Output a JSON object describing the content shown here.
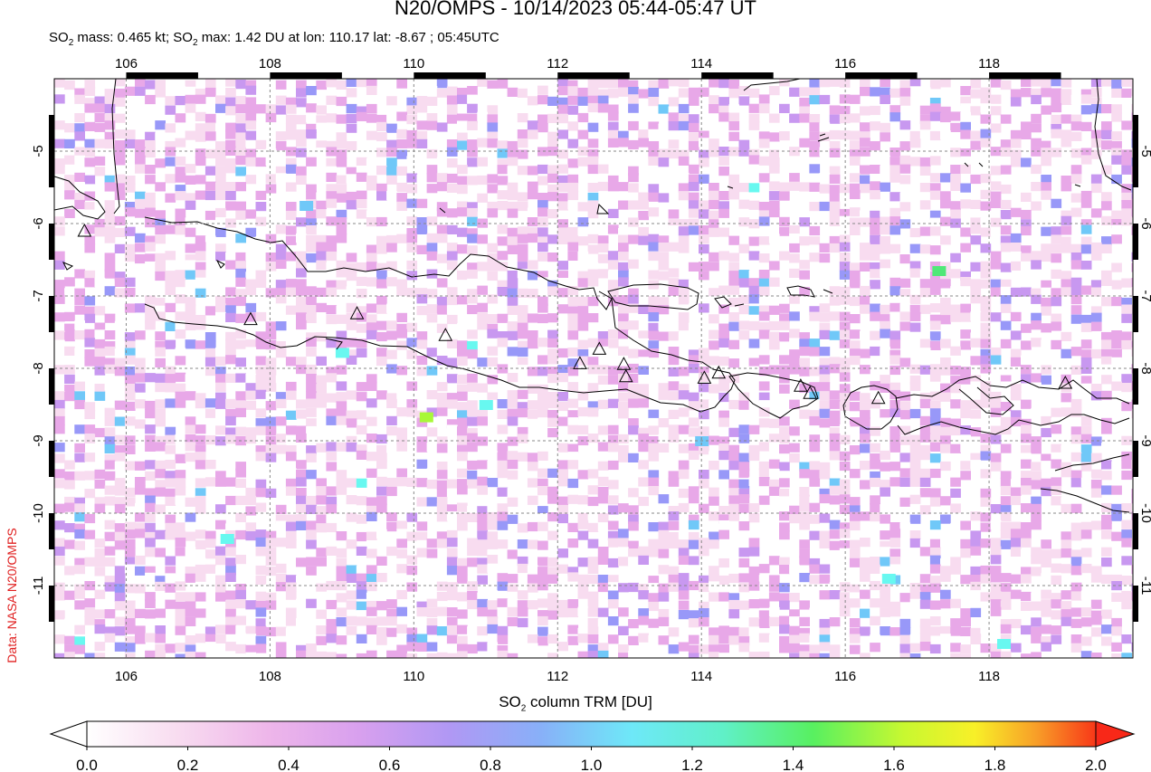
{
  "title": "N20/OMPS - 10/14/2023 05:44-05:47 UT",
  "subtitle": {
    "mass_prefix": "SO",
    "mass_text": " mass: 0.465 kt; SO",
    "max_text": " max: 1.42 DU at lon: 110.17 lat: -8.67 ; 05:45UTC"
  },
  "credit": "Data: NASA N20/OMPS",
  "map": {
    "lon_ticks": [
      "106",
      "108",
      "110",
      "112",
      "114",
      "116",
      "118"
    ],
    "lat_ticks": [
      "-5",
      "-6",
      "-7",
      "-8",
      "-9",
      "-10",
      "-11"
    ],
    "lon_range": [
      105.0,
      120.0
    ],
    "lat_range": [
      -12.0,
      -4.0
    ],
    "grid": true,
    "volcano_marker": "triangle-outline",
    "volcanoes": [
      {
        "lon": 105.42,
        "lat": -6.1
      },
      {
        "lon": 107.73,
        "lat": -7.32
      },
      {
        "lon": 109.21,
        "lat": -7.24
      },
      {
        "lon": 110.44,
        "lat": -7.54
      },
      {
        "lon": 112.31,
        "lat": -7.93
      },
      {
        "lon": 112.58,
        "lat": -7.73
      },
      {
        "lon": 112.92,
        "lat": -7.94
      },
      {
        "lon": 112.95,
        "lat": -8.11
      },
      {
        "lon": 114.04,
        "lat": -8.13
      },
      {
        "lon": 114.24,
        "lat": -8.06
      },
      {
        "lon": 115.38,
        "lat": -8.24
      },
      {
        "lon": 115.51,
        "lat": -8.34
      },
      {
        "lon": 116.46,
        "lat": -8.41
      },
      {
        "lon": 119.06,
        "lat": -8.2
      }
    ],
    "max_location": {
      "lon": 110.17,
      "lat": -8.67,
      "value": 1.42
    }
  },
  "colorbar": {
    "label_prefix": "SO",
    "label_suffix": " column TRM [DU]",
    "ticks": [
      "0.0",
      "0.2",
      "0.4",
      "0.6",
      "0.8",
      "1.0",
      "1.2",
      "1.4",
      "1.6",
      "1.8",
      "2.0"
    ],
    "range": [
      0.0,
      2.0
    ],
    "colors": [
      "#ffffff",
      "#f8dcf0",
      "#e8a8e8",
      "#c898f0",
      "#9898f8",
      "#70c8f8",
      "#68f8f0",
      "#50e878",
      "#a8f838",
      "#f8f828",
      "#f8a828",
      "#f82818"
    ]
  },
  "chart_data": {
    "type": "heatmap",
    "title": "N20/OMPS - 10/14/2023 05:44-05:47 UT",
    "xlabel": "",
    "ylabel": "",
    "colorbar_label": "SO2 column TRM [DU]",
    "xlim": [
      105.0,
      120.0
    ],
    "ylim": [
      -12.0,
      -4.0
    ],
    "vmin": 0.0,
    "vmax": 2.0,
    "so2_mass_kt": 0.465,
    "so2_max_du": 1.42,
    "so2_max_lon": 110.17,
    "so2_max_lat": -8.67,
    "so2_max_time": "05:45UTC",
    "notable_pixels": [
      {
        "lon": 110.17,
        "lat": -8.67,
        "value": 1.42
      },
      {
        "lon": 109.0,
        "lat": -7.78,
        "value": 1.0
      },
      {
        "lon": 107.4,
        "lat": -10.35,
        "value": 1.0
      },
      {
        "lon": 117.3,
        "lat": -6.65,
        "value": 1.2
      },
      {
        "lon": 108.5,
        "lat": -5.75,
        "value": 0.9
      },
      {
        "lon": 111.0,
        "lat": -8.5,
        "value": 1.1
      },
      {
        "lon": 118.2,
        "lat": -11.8,
        "value": 1.0
      },
      {
        "lon": 114.0,
        "lat": -9.0,
        "value": 0.9
      },
      {
        "lon": 116.6,
        "lat": -10.9,
        "value": 1.0
      }
    ]
  }
}
